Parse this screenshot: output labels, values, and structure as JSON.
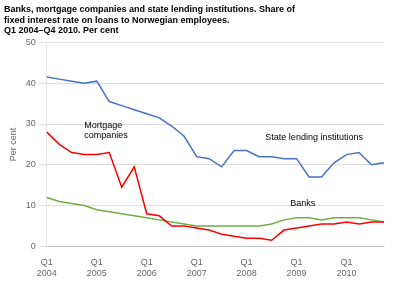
{
  "chart_data": {
    "type": "line",
    "title": "Banks, mortgage companies and state lending institutions. Share of\nfixed interest rate on loans to Norwegian employees.\nQ1 2004–Q4 2010. Per cent",
    "y_label": "Per cent",
    "categories": [
      "Q1\n2004",
      null,
      null,
      null,
      "Q1\n2005",
      null,
      null,
      null,
      "Q1\n2006",
      null,
      null,
      null,
      "Q1\n2007",
      null,
      null,
      null,
      "Q1\n2008",
      null,
      null,
      null,
      "Q1\n2009",
      null,
      null,
      null,
      "Q1\n2010",
      null,
      null,
      null
    ],
    "series": [
      {
        "name": "State lending institutions",
        "color": "#4472c4",
        "values": [
          41.5,
          41.0,
          40.5,
          40.0,
          40.5,
          35.5,
          34.5,
          33.5,
          32.5,
          31.5,
          29.5,
          27.0,
          22.0,
          21.5,
          19.5,
          23.5,
          23.5,
          22.0,
          22.0,
          21.5,
          21.5,
          17.0,
          17.0,
          20.5,
          22.5,
          23.0,
          20.0,
          20.5
        ]
      },
      {
        "name": "Mortgage\ncompanies",
        "color": "#ff0000",
        "values": [
          28.0,
          25.0,
          23.0,
          22.5,
          22.5,
          23.0,
          14.5,
          19.5,
          8.0,
          7.5,
          5.0,
          5.0,
          4.5,
          4.0,
          3.0,
          2.5,
          2.0,
          2.0,
          1.5,
          4.0,
          4.5,
          5.0,
          5.5,
          5.5,
          6.0,
          5.5,
          6.0,
          6.0
        ]
      },
      {
        "name": "Banks",
        "color": "#70ad47",
        "values": [
          12.0,
          11.0,
          10.5,
          10.0,
          9.0,
          8.5,
          8.0,
          7.5,
          7.0,
          6.5,
          6.0,
          5.5,
          5.0,
          5.0,
          5.0,
          5.0,
          5.0,
          5.0,
          5.5,
          6.5,
          7.0,
          7.0,
          6.5,
          7.0,
          7.0,
          7.0,
          6.5,
          6.0
        ]
      }
    ],
    "annotations": [
      {
        "text": "Mortgage\ncompanies",
        "x": 3,
        "y": 26.0
      },
      {
        "text": "State lending institutions",
        "x": 17.5,
        "y": 25.5
      },
      {
        "text": "Banks",
        "x": 19.5,
        "y": 9.5
      }
    ],
    "ylim": [
      0,
      50
    ],
    "yticks": [
      0,
      10,
      20,
      30,
      40,
      50
    ],
    "grid": true
  }
}
